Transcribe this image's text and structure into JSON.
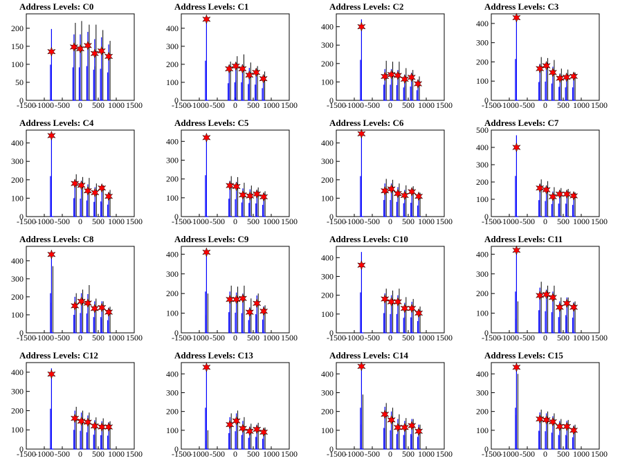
{
  "figure": {
    "x_ticks": [
      -1500,
      -1000,
      -500,
      0,
      500,
      1000,
      1500
    ]
  },
  "chart_data": [
    {
      "type": "bar",
      "title": "Address Levels: C0",
      "xlim": [
        -1500,
        1500
      ],
      "ylim": [
        0,
        240
      ],
      "yticks": [
        0,
        50,
        100,
        150,
        200
      ],
      "peaks": [
        {
          "x": -800,
          "blue": 198,
          "black": 0,
          "star": 135
        },
        {
          "x": -175,
          "blue": 183,
          "black": 215,
          "star": 148
        },
        {
          "x": 0,
          "blue": 183,
          "black": 220,
          "star": 143
        },
        {
          "x": 210,
          "blue": 190,
          "black": 210,
          "star": 152
        },
        {
          "x": 400,
          "blue": 170,
          "black": 210,
          "star": 130
        },
        {
          "x": 590,
          "blue": 175,
          "black": 195,
          "star": 137
        },
        {
          "x": 790,
          "blue": 155,
          "black": 165,
          "star": 122
        }
      ]
    },
    {
      "type": "bar",
      "title": "Address Levels: C1",
      "xlim": [
        -1500,
        1500
      ],
      "ylim": [
        0,
        480
      ],
      "yticks": [
        0,
        100,
        200,
        300,
        400
      ],
      "peaks": [
        {
          "x": -800,
          "blue": 440,
          "black": 0,
          "star": 450
        },
        {
          "x": -170,
          "blue": 190,
          "black": 215,
          "star": 175
        },
        {
          "x": 15,
          "blue": 200,
          "black": 245,
          "star": 190
        },
        {
          "x": 200,
          "blue": 200,
          "black": 255,
          "star": 175
        },
        {
          "x": 390,
          "blue": 180,
          "black": 210,
          "star": 140
        },
        {
          "x": 580,
          "blue": 175,
          "black": 190,
          "star": 155
        },
        {
          "x": 780,
          "blue": 135,
          "black": 160,
          "star": 120
        }
      ]
    },
    {
      "type": "bar",
      "title": "Address Levels: C2",
      "xlim": [
        -1500,
        1500
      ],
      "ylim": [
        0,
        470
      ],
      "yticks": [
        0,
        100,
        200,
        300,
        400
      ],
      "peaks": [
        {
          "x": -800,
          "blue": 440,
          "black": 0,
          "star": 400
        },
        {
          "x": -150,
          "blue": 170,
          "black": 215,
          "star": 130
        },
        {
          "x": 30,
          "blue": 170,
          "black": 210,
          "star": 140
        },
        {
          "x": 210,
          "blue": 165,
          "black": 210,
          "star": 135
        },
        {
          "x": 400,
          "blue": 140,
          "black": 175,
          "star": 115
        },
        {
          "x": 590,
          "blue": 150,
          "black": 165,
          "star": 125
        },
        {
          "x": 770,
          "blue": 110,
          "black": 130,
          "star": 90
        }
      ]
    },
    {
      "type": "bar",
      "title": "Address Levels: C3",
      "xlim": [
        -1500,
        1500
      ],
      "ylim": [
        0,
        450
      ],
      "yticks": [
        0,
        100,
        200,
        300,
        400
      ],
      "peaks": [
        {
          "x": -800,
          "blue": 430,
          "black": 0,
          "star": 430
        },
        {
          "x": -150,
          "blue": 190,
          "black": 225,
          "star": 165
        },
        {
          "x": 30,
          "blue": 195,
          "black": 220,
          "star": 180
        },
        {
          "x": 210,
          "blue": 175,
          "black": 210,
          "star": 145
        },
        {
          "x": 410,
          "blue": 140,
          "black": 165,
          "star": 115
        },
        {
          "x": 590,
          "blue": 135,
          "black": 160,
          "star": 120
        },
        {
          "x": 790,
          "blue": 135,
          "black": 145,
          "star": 125
        }
      ]
    },
    {
      "type": "bar",
      "title": "Address Levels: C4",
      "xlim": [
        -1500,
        1500
      ],
      "ylim": [
        0,
        470
      ],
      "yticks": [
        0,
        100,
        200,
        300,
        400
      ],
      "peaks": [
        {
          "x": -800,
          "blue": 440,
          "black": 0,
          "star": 440
        },
        {
          "x": -150,
          "blue": 200,
          "black": 230,
          "star": 180
        },
        {
          "x": 30,
          "blue": 195,
          "black": 215,
          "star": 170
        },
        {
          "x": 210,
          "blue": 175,
          "black": 210,
          "star": 140
        },
        {
          "x": 410,
          "blue": 160,
          "black": 180,
          "star": 130
        },
        {
          "x": 600,
          "blue": 165,
          "black": 170,
          "star": 155
        },
        {
          "x": 790,
          "blue": 130,
          "black": 145,
          "star": 110
        }
      ]
    },
    {
      "type": "bar",
      "title": "Address Levels: C5",
      "xlim": [
        -1500,
        1500
      ],
      "ylim": [
        0,
        460
      ],
      "yticks": [
        0,
        100,
        200,
        300,
        400
      ],
      "peaks": [
        {
          "x": -800,
          "blue": 440,
          "black": 0,
          "star": 420
        },
        {
          "x": -150,
          "blue": 190,
          "black": 215,
          "star": 165
        },
        {
          "x": 30,
          "blue": 185,
          "black": 210,
          "star": 160
        },
        {
          "x": 210,
          "blue": 150,
          "black": 180,
          "star": 115
        },
        {
          "x": 410,
          "blue": 145,
          "black": 165,
          "star": 110
        },
        {
          "x": 600,
          "blue": 140,
          "black": 155,
          "star": 120
        },
        {
          "x": 790,
          "blue": 125,
          "black": 135,
          "star": 105
        }
      ]
    },
    {
      "type": "bar",
      "title": "Address Levels: C6",
      "xlim": [
        -1500,
        1500
      ],
      "ylim": [
        0,
        470
      ],
      "yticks": [
        0,
        100,
        200,
        300,
        400
      ],
      "peaks": [
        {
          "x": -800,
          "blue": 440,
          "black": 0,
          "star": 450
        },
        {
          "x": -150,
          "blue": 180,
          "black": 205,
          "star": 140
        },
        {
          "x": 30,
          "blue": 180,
          "black": 200,
          "star": 150
        },
        {
          "x": 210,
          "blue": 160,
          "black": 180,
          "star": 125
        },
        {
          "x": 400,
          "blue": 145,
          "black": 170,
          "star": 115
        },
        {
          "x": 600,
          "blue": 150,
          "black": 165,
          "star": 135
        },
        {
          "x": 790,
          "blue": 120,
          "black": 130,
          "star": 110
        }
      ]
    },
    {
      "type": "bar",
      "title": "Address Levels: C7",
      "xlim": [
        -1500,
        1500
      ],
      "ylim": [
        0,
        500
      ],
      "yticks": [
        0,
        100,
        200,
        300,
        400,
        500
      ],
      "peaks": [
        {
          "x": -800,
          "blue": 470,
          "black": 0,
          "star": 400
        },
        {
          "x": -150,
          "blue": 190,
          "black": 215,
          "star": 165
        },
        {
          "x": 30,
          "blue": 180,
          "black": 205,
          "star": 155
        },
        {
          "x": 210,
          "blue": 145,
          "black": 170,
          "star": 115
        },
        {
          "x": 400,
          "blue": 150,
          "black": 165,
          "star": 130
        },
        {
          "x": 600,
          "blue": 150,
          "black": 160,
          "star": 130
        },
        {
          "x": 790,
          "blue": 135,
          "black": 140,
          "star": 120
        }
      ]
    },
    {
      "type": "bar",
      "title": "Address Levels: C8",
      "xlim": [
        -1500,
        1500
      ],
      "ylim": [
        0,
        480
      ],
      "yticks": [
        0,
        100,
        200,
        300,
        400
      ],
      "peaks": [
        {
          "x": -800,
          "blue": 440,
          "black": 370,
          "star": 435
        },
        {
          "x": -150,
          "blue": 200,
          "black": 220,
          "star": 150
        },
        {
          "x": 30,
          "blue": 220,
          "black": 240,
          "star": 175
        },
        {
          "x": 210,
          "blue": 215,
          "black": 265,
          "star": 165
        },
        {
          "x": 400,
          "blue": 175,
          "black": 190,
          "star": 135
        },
        {
          "x": 600,
          "blue": 175,
          "black": 175,
          "star": 140
        },
        {
          "x": 790,
          "blue": 140,
          "black": 145,
          "star": 115
        }
      ]
    },
    {
      "type": "bar",
      "title": "Address Levels: C9",
      "xlim": [
        -1500,
        1500
      ],
      "ylim": [
        0,
        440
      ],
      "yticks": [
        0,
        100,
        200,
        300,
        400
      ],
      "peaks": [
        {
          "x": -800,
          "blue": 420,
          "black": 200,
          "star": 410
        },
        {
          "x": -150,
          "blue": 210,
          "black": 240,
          "star": 170
        },
        {
          "x": 30,
          "blue": 205,
          "black": 235,
          "star": 170
        },
        {
          "x": 210,
          "blue": 200,
          "black": 240,
          "star": 175
        },
        {
          "x": 400,
          "blue": 130,
          "black": 175,
          "star": 105
        },
        {
          "x": 600,
          "blue": 190,
          "black": 200,
          "star": 150
        },
        {
          "x": 790,
          "blue": 135,
          "black": 140,
          "star": 110
        }
      ]
    },
    {
      "type": "bar",
      "title": "Address Levels: C10",
      "xlim": [
        -1500,
        1500
      ],
      "ylim": [
        0,
        460
      ],
      "yticks": [
        0,
        100,
        200,
        300,
        400
      ],
      "peaks": [
        {
          "x": -800,
          "blue": 430,
          "black": 0,
          "star": 360
        },
        {
          "x": -150,
          "blue": 210,
          "black": 235,
          "star": 180
        },
        {
          "x": 30,
          "blue": 200,
          "black": 225,
          "star": 165
        },
        {
          "x": 210,
          "blue": 200,
          "black": 235,
          "star": 165
        },
        {
          "x": 400,
          "blue": 160,
          "black": 190,
          "star": 130
        },
        {
          "x": 600,
          "blue": 165,
          "black": 180,
          "star": 130
        },
        {
          "x": 790,
          "blue": 125,
          "black": 140,
          "star": 105
        }
      ]
    },
    {
      "type": "bar",
      "title": "Address Levels: C11",
      "xlim": [
        -1500,
        1500
      ],
      "ylim": [
        0,
        440
      ],
      "yticks": [
        0,
        100,
        200,
        300,
        400
      ],
      "peaks": [
        {
          "x": -800,
          "blue": 420,
          "black": 160,
          "star": 420
        },
        {
          "x": -150,
          "blue": 230,
          "black": 260,
          "star": 190
        },
        {
          "x": 30,
          "blue": 220,
          "black": 240,
          "star": 195
        },
        {
          "x": 210,
          "blue": 210,
          "black": 240,
          "star": 180
        },
        {
          "x": 400,
          "blue": 160,
          "black": 180,
          "star": 130
        },
        {
          "x": 600,
          "blue": 180,
          "black": 180,
          "star": 150
        },
        {
          "x": 790,
          "blue": 155,
          "black": 160,
          "star": 130
        }
      ]
    },
    {
      "type": "bar",
      "title": "Address Levels: C12",
      "xlim": [
        -1500,
        1500
      ],
      "ylim": [
        0,
        450
      ],
      "yticks": [
        0,
        100,
        200,
        300,
        400
      ],
      "peaks": [
        {
          "x": -800,
          "blue": 420,
          "black": 0,
          "star": 390
        },
        {
          "x": -150,
          "blue": 200,
          "black": 220,
          "star": 160
        },
        {
          "x": 30,
          "blue": 190,
          "black": 200,
          "star": 145
        },
        {
          "x": 210,
          "blue": 175,
          "black": 190,
          "star": 140
        },
        {
          "x": 400,
          "blue": 150,
          "black": 165,
          "star": 120
        },
        {
          "x": 600,
          "blue": 145,
          "black": 160,
          "star": 115
        },
        {
          "x": 790,
          "blue": 140,
          "black": 145,
          "star": 115
        }
      ]
    },
    {
      "type": "bar",
      "title": "Address Levels: C13",
      "xlim": [
        -1500,
        1500
      ],
      "ylim": [
        0,
        460
      ],
      "yticks": [
        0,
        100,
        200,
        300,
        400
      ],
      "peaks": [
        {
          "x": -800,
          "blue": 440,
          "black": 100,
          "star": 435
        },
        {
          "x": -150,
          "blue": 170,
          "black": 190,
          "star": 130
        },
        {
          "x": 30,
          "blue": 190,
          "black": 205,
          "star": 150
        },
        {
          "x": 210,
          "blue": 150,
          "black": 170,
          "star": 110
        },
        {
          "x": 400,
          "blue": 120,
          "black": 135,
          "star": 95
        },
        {
          "x": 600,
          "blue": 130,
          "black": 140,
          "star": 105
        },
        {
          "x": 790,
          "blue": 110,
          "black": 115,
          "star": 90
        }
      ]
    },
    {
      "type": "bar",
      "title": "Address Levels: C14",
      "xlim": [
        -1500,
        1500
      ],
      "ylim": [
        0,
        460
      ],
      "yticks": [
        0,
        100,
        200,
        300,
        400
      ],
      "peaks": [
        {
          "x": -800,
          "blue": 440,
          "black": 290,
          "star": 440
        },
        {
          "x": -150,
          "blue": 225,
          "black": 245,
          "star": 185
        },
        {
          "x": 30,
          "blue": 200,
          "black": 220,
          "star": 155
        },
        {
          "x": 210,
          "blue": 160,
          "black": 185,
          "star": 115
        },
        {
          "x": 400,
          "blue": 150,
          "black": 165,
          "star": 115
        },
        {
          "x": 600,
          "blue": 160,
          "black": 160,
          "star": 125
        },
        {
          "x": 790,
          "blue": 130,
          "black": 130,
          "star": 95
        }
      ]
    },
    {
      "type": "bar",
      "title": "Address Levels: C15",
      "xlim": [
        -1500,
        1500
      ],
      "ylim": [
        0,
        460
      ],
      "yticks": [
        0,
        100,
        200,
        300,
        400
      ],
      "peaks": [
        {
          "x": -800,
          "blue": 440,
          "black": 400,
          "star": 435
        },
        {
          "x": -150,
          "blue": 195,
          "black": 210,
          "star": 160
        },
        {
          "x": 30,
          "blue": 190,
          "black": 200,
          "star": 155
        },
        {
          "x": 210,
          "blue": 175,
          "black": 190,
          "star": 145
        },
        {
          "x": 400,
          "blue": 150,
          "black": 160,
          "star": 120
        },
        {
          "x": 600,
          "blue": 150,
          "black": 155,
          "star": 120
        },
        {
          "x": 790,
          "blue": 125,
          "black": 130,
          "star": 100
        }
      ]
    }
  ]
}
